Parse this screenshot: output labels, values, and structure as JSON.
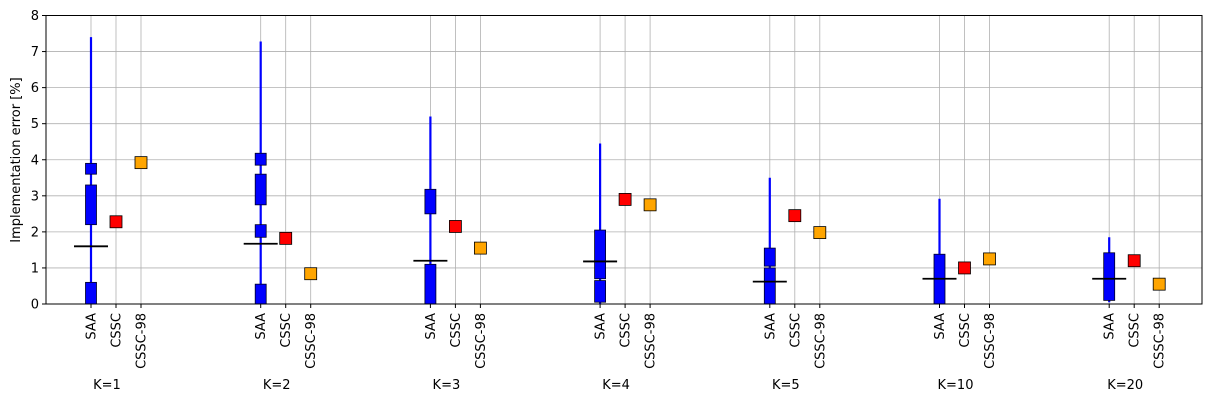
{
  "chart_data": {
    "type": "scatter",
    "title": "",
    "xlabel": "",
    "ylabel": "Implementation error [%]",
    "ylim": [
      0,
      8
    ],
    "yticks": [
      "0",
      "1",
      "2",
      "3",
      "4",
      "5",
      "6",
      "7",
      "8"
    ],
    "grid": true,
    "method_labels": [
      "SAA",
      "CSSC",
      "CSSC-98"
    ],
    "groups": [
      {
        "label": "K=1",
        "saa_range": [
          0,
          7.4
        ],
        "saa_boxes": [
          [
            0,
            0.6
          ],
          [
            2.2,
            3.3
          ],
          [
            3.6,
            3.9
          ]
        ],
        "saa_mean": 1.6,
        "cssc": 2.28,
        "cssc98": 3.92
      },
      {
        "label": "K=2",
        "saa_range": [
          0,
          7.28
        ],
        "saa_boxes": [
          [
            0,
            0.55
          ],
          [
            1.85,
            2.2
          ],
          [
            2.75,
            3.6
          ],
          [
            3.85,
            4.18
          ]
        ],
        "saa_mean": 1.67,
        "cssc": 1.82,
        "cssc98": 0.84
      },
      {
        "label": "K=3",
        "saa_range": [
          0,
          5.2
        ],
        "saa_boxes": [
          [
            0,
            1.1
          ],
          [
            2.5,
            3.18
          ]
        ],
        "saa_mean": 1.2,
        "cssc": 2.15,
        "cssc98": 1.55
      },
      {
        "label": "K=4",
        "saa_range": [
          0,
          4.45
        ],
        "saa_boxes": [
          [
            0.05,
            0.65
          ],
          [
            0.7,
            2.05
          ]
        ],
        "saa_mean": 1.18,
        "cssc": 2.9,
        "cssc98": 2.75
      },
      {
        "label": "K=5",
        "saa_range": [
          0,
          3.5
        ],
        "saa_boxes": [
          [
            0,
            1.0
          ],
          [
            1.05,
            1.55
          ]
        ],
        "saa_mean": 0.62,
        "cssc": 2.45,
        "cssc98": 1.98
      },
      {
        "label": "K=10",
        "saa_range": [
          0,
          2.92
        ],
        "saa_boxes": [
          [
            0,
            1.38
          ]
        ],
        "saa_mean": 0.7,
        "cssc": 1.0,
        "cssc98": 1.25
      },
      {
        "label": "K=20",
        "saa_range": [
          0.05,
          1.85
        ],
        "saa_boxes": [
          [
            0.1,
            1.42
          ]
        ],
        "saa_mean": 0.7,
        "cssc": 1.2,
        "cssc98": 0.55
      }
    ],
    "colors": {
      "saa": "#0000ff",
      "cssc": "#ff0000",
      "cssc98": "#ffa500",
      "mean_line": "#000000",
      "grid": "#b0b0b0"
    }
  }
}
